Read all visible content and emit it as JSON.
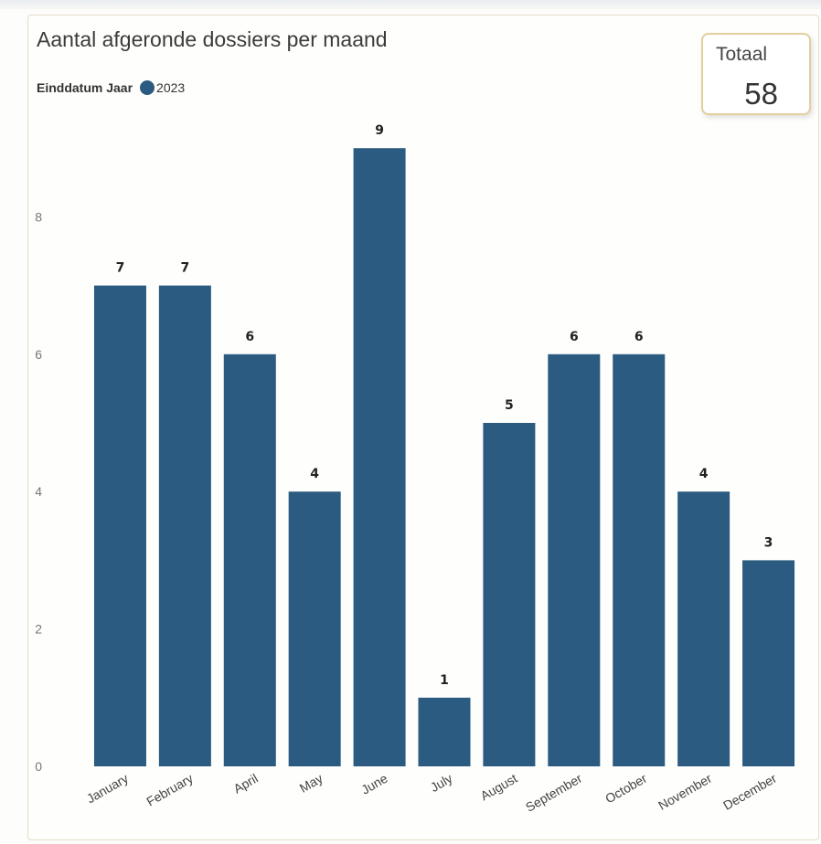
{
  "chart_data": {
    "type": "bar",
    "title": "Aantal afgeronde dossiers per maand",
    "legend": {
      "title": "Einddatum Jaar",
      "entries": [
        "2023"
      ]
    },
    "series": [
      {
        "name": "2023",
        "values": [
          7,
          7,
          6,
          4,
          9,
          1,
          5,
          6,
          6,
          4,
          3
        ]
      }
    ],
    "categories": [
      "January",
      "February",
      "April",
      "May",
      "June",
      "July",
      "August",
      "September",
      "October",
      "November",
      "December"
    ],
    "y_ticks": [
      "0",
      "2",
      "4",
      "6",
      "8"
    ],
    "ylim": [
      0,
      9
    ],
    "xlabel": "",
    "ylabel": "",
    "data_labels": true,
    "grid": false,
    "legend_position": "top-left"
  },
  "kpi": {
    "label": "Totaal",
    "value": "58"
  },
  "colors": {
    "bar": "#2b5b80",
    "border": "#e3cf9c"
  }
}
